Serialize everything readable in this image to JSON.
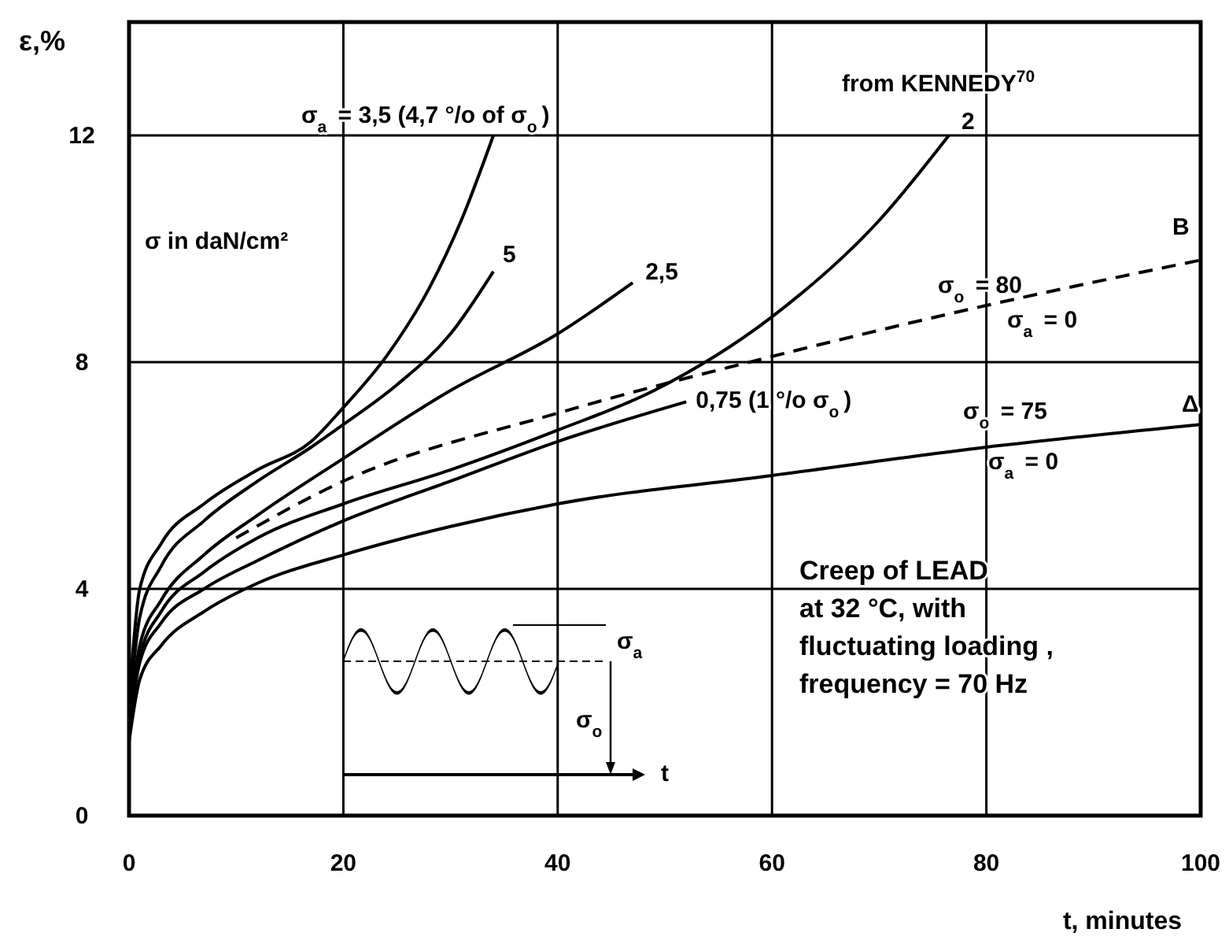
{
  "chart_data": {
    "type": "line",
    "xlabel": "t,  minutes",
    "ylabel": "ε,%",
    "xlim": [
      0,
      100
    ],
    "ylim": [
      0,
      14
    ],
    "xticks": [
      0,
      20,
      40,
      60,
      80,
      100
    ],
    "yticks": [
      0,
      4,
      8,
      12
    ],
    "grid": true,
    "series": [
      {
        "name": "σ$_{a}$ = 3,5 (4,7 °/o of σ$_{o}$)",
        "color": "#000000",
        "x": [
          0,
          1,
          3,
          7,
          12,
          17,
          20,
          24,
          28,
          31,
          34
        ],
        "values": [
          2,
          4,
          4.8,
          5.5,
          6.1,
          6.6,
          7.2,
          8.1,
          9.3,
          10.5,
          12
        ]
      },
      {
        "name": "5",
        "color": "#000000",
        "x": [
          0,
          1,
          3,
          7,
          12,
          17,
          20,
          25,
          30,
          34
        ],
        "values": [
          1.8,
          3.5,
          4.4,
          5.2,
          5.9,
          6.5,
          6.9,
          7.6,
          8.5,
          9.6
        ]
      },
      {
        "name": "2,5",
        "color": "#000000",
        "x": [
          0,
          1,
          3,
          7,
          12,
          20,
          30,
          40,
          47
        ],
        "values": [
          1.6,
          3,
          3.8,
          4.6,
          5.3,
          6.3,
          7.5,
          8.5,
          9.4
        ]
      },
      {
        "name": "2",
        "color": "#000000",
        "x": [
          0,
          1,
          3,
          7,
          12,
          20,
          30,
          40,
          49,
          60,
          70,
          76.5
        ],
        "values": [
          1.5,
          2.8,
          3.6,
          4.3,
          4.9,
          5.5,
          6.1,
          6.8,
          7.5,
          8.8,
          10.5,
          12
        ]
      },
      {
        "name": "0,75 (1 °/o σ$_{o}$)",
        "color": "#000000",
        "x": [
          0,
          1,
          3,
          7,
          12,
          20,
          30,
          40,
          52
        ],
        "values": [
          1.5,
          2.7,
          3.4,
          4,
          4.5,
          5.2,
          5.9,
          6.6,
          7.3
        ]
      },
      {
        "name": "B",
        "color": "#000000",
        "line_style": "dashed",
        "x": [
          10,
          20,
          40,
          60,
          80,
          100
        ],
        "values": [
          4.9,
          5.9,
          7.1,
          8.1,
          9,
          9.8
        ]
      },
      {
        "name": "Δ",
        "color": "#000000",
        "x": [
          0,
          1,
          3,
          7,
          12,
          20,
          30,
          40,
          60,
          80,
          100
        ],
        "values": [
          1.3,
          2.4,
          3,
          3.6,
          4.1,
          4.6,
          5.1,
          5.5,
          6,
          6.5,
          6.9
        ]
      }
    ],
    "annotations": [
      "from KENNEDY$^{70}$",
      "σ  in  daN/cm²",
      "σ$_{o}$ = 80",
      "σ$_{a}$ = 0",
      "σ$_{o}$ = 75",
      "σ$_{a}$ = 0",
      "Creep of LEAD\nat  32 °C, with\nfluctuating loading ,\nfrequency = 70 Hz",
      "σ$_{a}$",
      "σ$_{o}$",
      "t"
    ]
  }
}
